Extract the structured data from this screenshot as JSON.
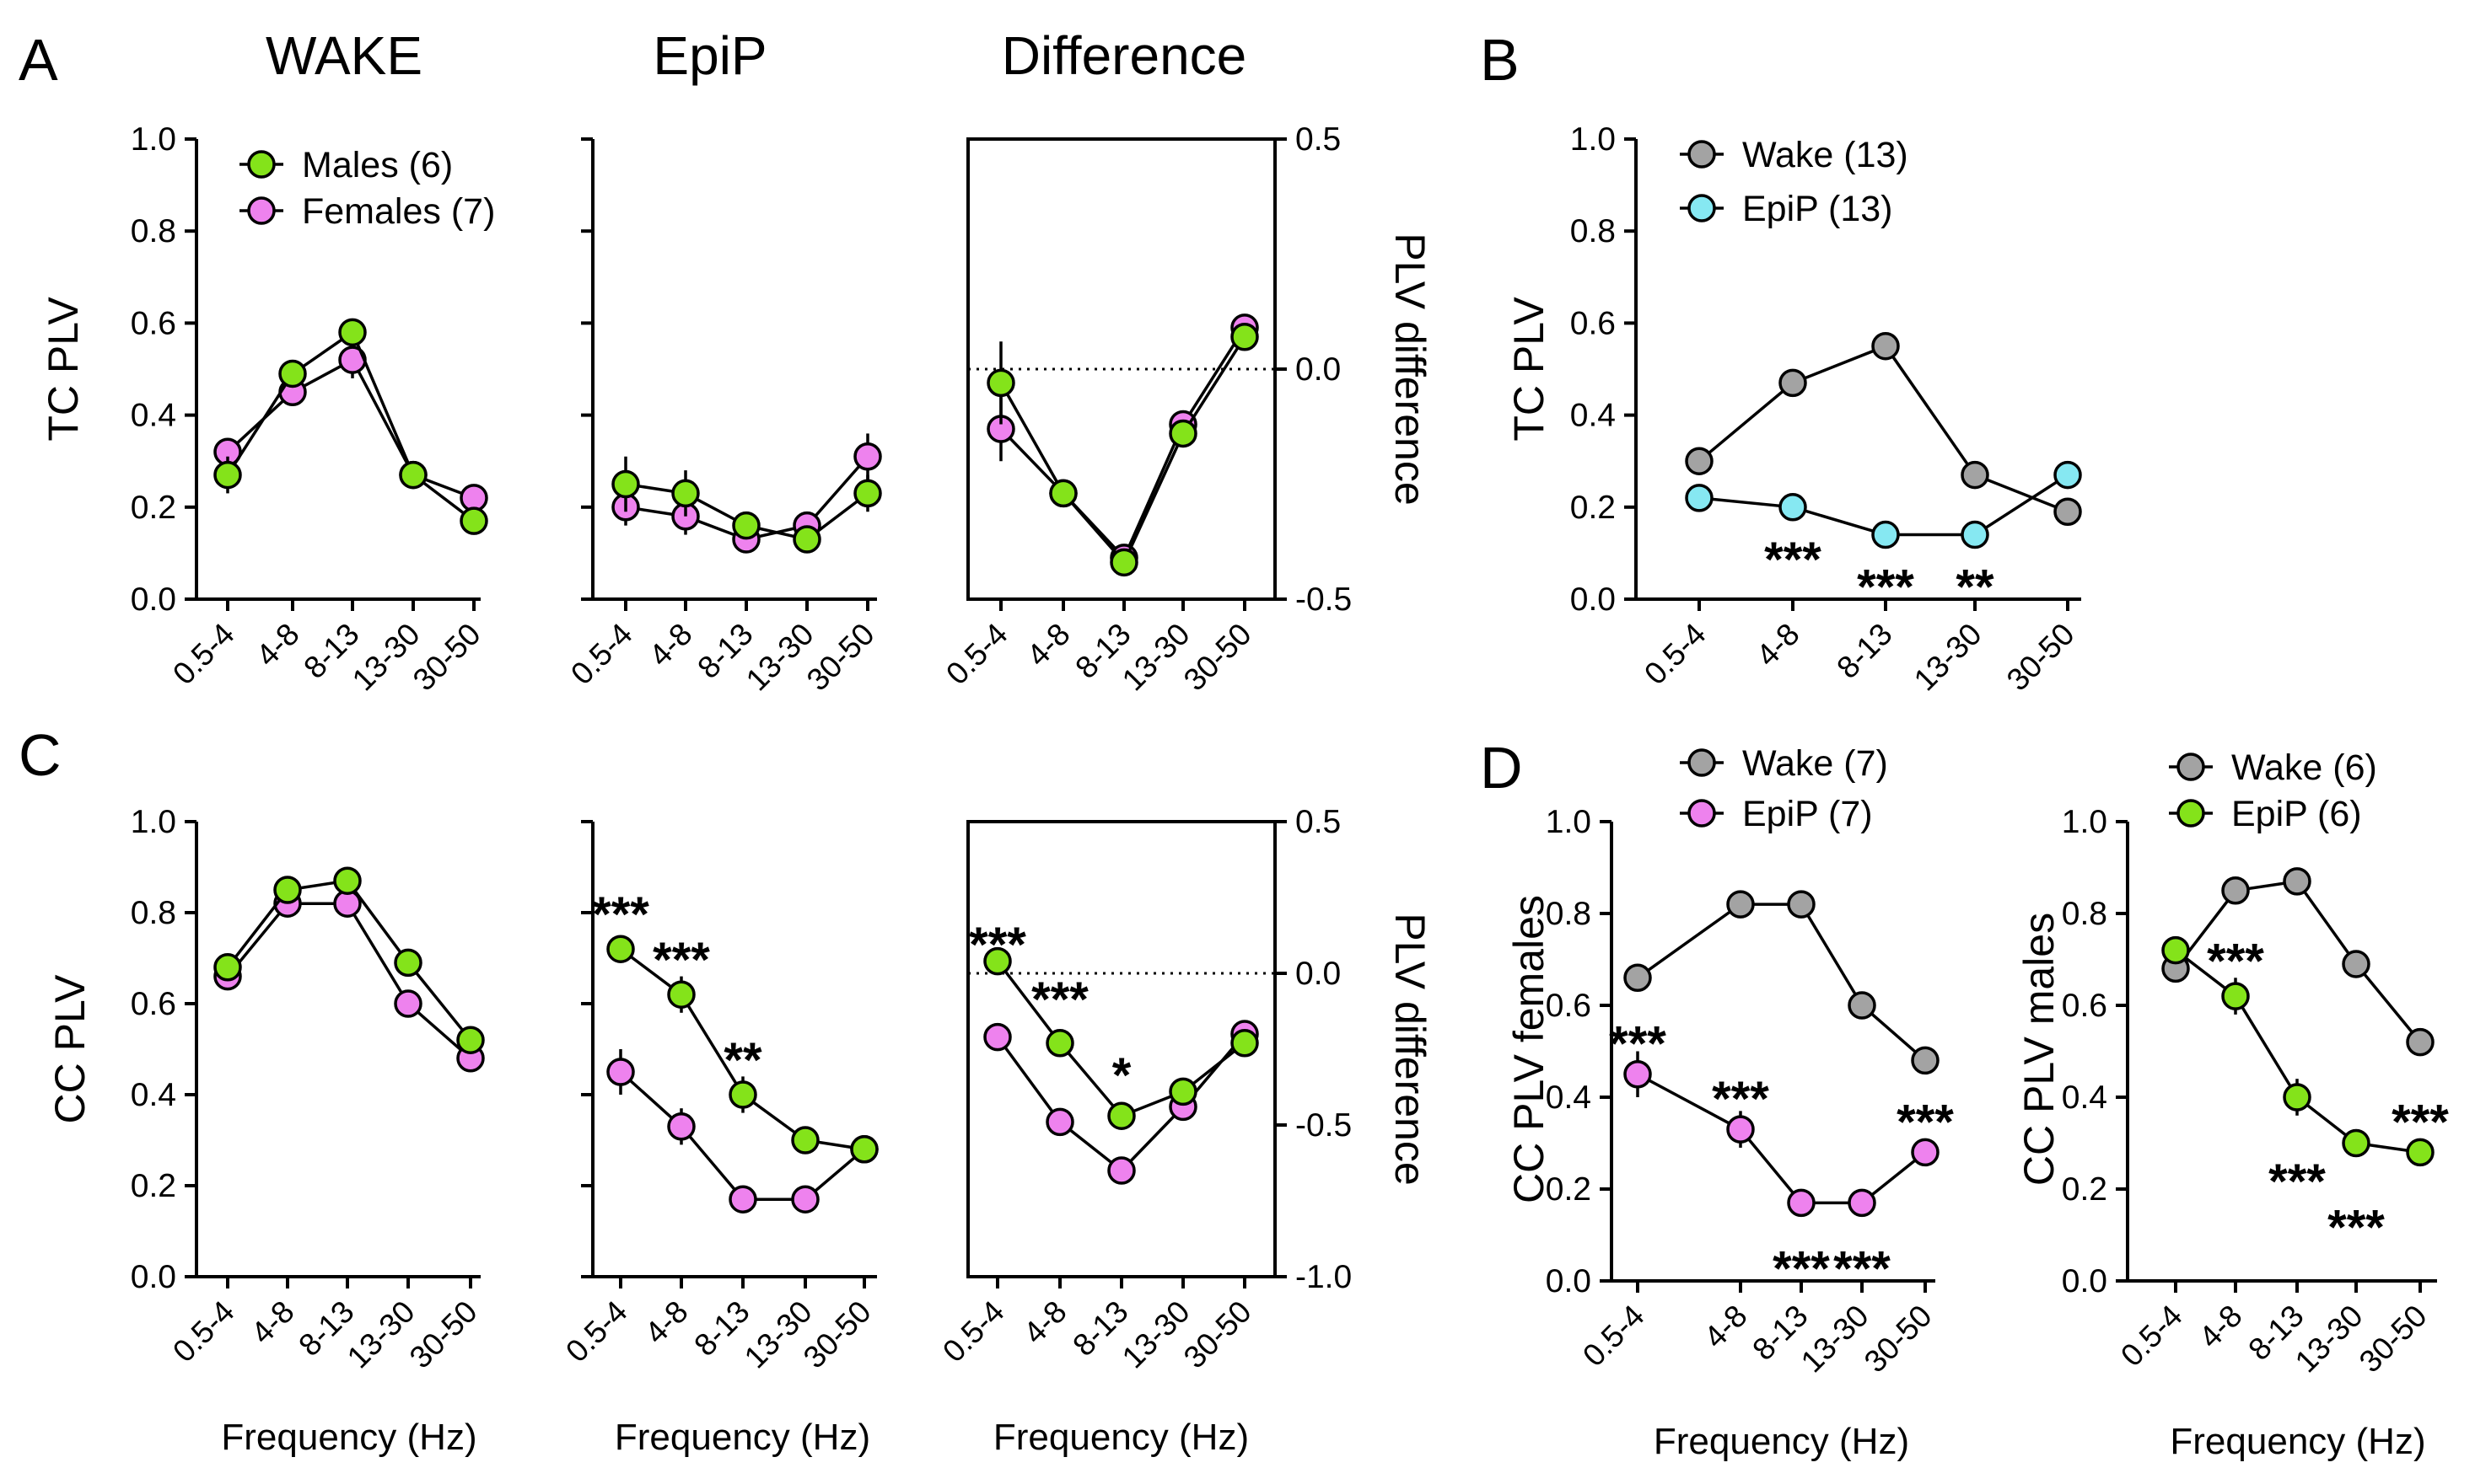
{
  "figure": {
    "panel_letters": [
      "A",
      "B",
      "C",
      "D"
    ]
  },
  "colors": {
    "males": "#84e31a",
    "females": "#ee82ee",
    "wake": "#a3a3a3",
    "epip_cyan": "#86e8f2",
    "epip_green": "#84e31a",
    "epip_magenta": "#ee82ee"
  },
  "chart_data": [
    {
      "id": "A-wake",
      "panel": "A",
      "type": "line",
      "title": "WAKE",
      "ylabel": "TC PLV",
      "xlabel": "",
      "ylim": [
        0,
        1
      ],
      "yticks": [
        "0.0",
        "0.2",
        "0.4",
        "0.6",
        "0.8",
        "1.0"
      ],
      "categories": [
        "0.5-4",
        "4-8",
        "8-13",
        "13-30",
        "30-50"
      ],
      "legend": [
        {
          "label": "Males (6)",
          "color": "males"
        },
        {
          "label": "Females (7)",
          "color": "females"
        }
      ],
      "series": [
        {
          "name": "Females (7)",
          "color": "females",
          "values": [
            0.32,
            0.45,
            0.52,
            0.27,
            0.22
          ],
          "err": [
            0.03,
            0.03,
            0.04,
            0.02,
            0.03
          ]
        },
        {
          "name": "Males (6)",
          "color": "males",
          "values": [
            0.27,
            0.49,
            0.58,
            0.27,
            0.17
          ],
          "err": [
            0.04,
            0.02,
            0.02,
            0.02,
            0.02
          ]
        }
      ],
      "annotations": []
    },
    {
      "id": "A-epip",
      "panel": "A",
      "type": "line",
      "title": "EpiP",
      "ylabel": "",
      "xlabel": "",
      "ylim": [
        0,
        1
      ],
      "yticks": [
        "",
        "",
        "",
        "",
        "",
        ""
      ],
      "categories": [
        "0.5-4",
        "4-8",
        "8-13",
        "13-30",
        "30-50"
      ],
      "series": [
        {
          "name": "Females",
          "color": "females",
          "values": [
            0.2,
            0.18,
            0.13,
            0.16,
            0.31
          ],
          "err": [
            0.04,
            0.04,
            0.02,
            0.03,
            0.05
          ]
        },
        {
          "name": "Males",
          "color": "males",
          "values": [
            0.25,
            0.23,
            0.16,
            0.13,
            0.23
          ],
          "err": [
            0.06,
            0.05,
            0.02,
            0.02,
            0.04
          ]
        }
      ],
      "annotations": []
    },
    {
      "id": "A-diff",
      "panel": "A",
      "type": "line",
      "title": "Difference",
      "ylabel": "PLV difference",
      "xlabel": "",
      "ylim": [
        -0.5,
        0.5
      ],
      "yticks": [
        "-0.5",
        "0.0",
        "0.5"
      ],
      "categories": [
        "0.5-4",
        "4-8",
        "8-13",
        "13-30",
        "30-50"
      ],
      "series": [
        {
          "name": "Females",
          "color": "females",
          "values": [
            -0.13,
            -0.27,
            -0.41,
            -0.12,
            0.09
          ],
          "err": [
            0.07,
            0.03,
            0.02,
            0.02,
            0.02
          ]
        },
        {
          "name": "Males",
          "color": "males",
          "values": [
            -0.03,
            -0.27,
            -0.42,
            -0.14,
            0.07
          ],
          "err": [
            0.09,
            0.03,
            0.02,
            0.02,
            0.02
          ]
        }
      ],
      "annotations": []
    },
    {
      "id": "B",
      "panel": "B",
      "type": "line",
      "title": "",
      "ylabel": "TC PLV",
      "xlabel": "",
      "ylim": [
        0,
        1
      ],
      "yticks": [
        "0.0",
        "0.2",
        "0.4",
        "0.6",
        "0.8",
        "1.0"
      ],
      "categories": [
        "0.5-4",
        "4-8",
        "8-13",
        "13-30",
        "30-50"
      ],
      "legend": [
        {
          "label": "Wake (13)",
          "color": "wake"
        },
        {
          "label": "EpiP (13)",
          "color": "epip_cyan"
        }
      ],
      "series": [
        {
          "name": "Wake (13)",
          "color": "wake",
          "values": [
            0.3,
            0.47,
            0.55,
            0.27,
            0.19
          ],
          "err": [
            0.02,
            0.02,
            0.02,
            0.01,
            0.02
          ]
        },
        {
          "name": "EpiP (13)",
          "color": "epip_cyan",
          "values": [
            0.22,
            0.2,
            0.14,
            0.14,
            0.27
          ],
          "err": [
            0.03,
            0.02,
            0.01,
            0.01,
            0.03
          ]
        }
      ],
      "annotations": [
        {
          "text": "***",
          "x": 1,
          "y": 0.09
        },
        {
          "text": "***",
          "x": 2,
          "y": 0.03
        },
        {
          "text": "**",
          "x": 3,
          "y": 0.03
        }
      ]
    },
    {
      "id": "C-wake",
      "panel": "C",
      "type": "line",
      "title": "",
      "ylabel": "CC PLV",
      "xlabel": "Frequency (Hz)",
      "ylim": [
        0,
        1
      ],
      "yticks": [
        "0.0",
        "0.2",
        "0.4",
        "0.6",
        "0.8",
        "1.0"
      ],
      "categories": [
        "0.5-4",
        "4-8",
        "8-13",
        "13-30",
        "30-50"
      ],
      "series": [
        {
          "name": "Females",
          "color": "females",
          "values": [
            0.66,
            0.82,
            0.82,
            0.6,
            0.48
          ],
          "err": [
            0.02,
            0.02,
            0.02,
            0.02,
            0.02
          ]
        },
        {
          "name": "Males",
          "color": "males",
          "values": [
            0.68,
            0.85,
            0.87,
            0.69,
            0.52
          ],
          "err": [
            0.02,
            0.02,
            0.02,
            0.02,
            0.02
          ]
        }
      ],
      "annotations": []
    },
    {
      "id": "C-epip",
      "panel": "C",
      "type": "line",
      "title": "",
      "ylabel": "",
      "xlabel": "Frequency (Hz)",
      "ylim": [
        0,
        1
      ],
      "yticks": [
        "",
        "",
        "",
        "",
        "",
        ""
      ],
      "categories": [
        "0.5-4",
        "4-8",
        "8-13",
        "13-30",
        "30-50"
      ],
      "series": [
        {
          "name": "Females",
          "color": "females",
          "values": [
            0.45,
            0.33,
            0.17,
            0.17,
            0.28
          ],
          "err": [
            0.05,
            0.04,
            0.03,
            0.02,
            0.03
          ]
        },
        {
          "name": "Males",
          "color": "males",
          "values": [
            0.72,
            0.62,
            0.4,
            0.3,
            0.28
          ],
          "err": [
            0.03,
            0.04,
            0.04,
            0.02,
            0.02
          ]
        }
      ],
      "annotations": [
        {
          "text": "***",
          "x": 0,
          "y": 0.8
        },
        {
          "text": "***",
          "x": 1,
          "y": 0.7
        },
        {
          "text": "**",
          "x": 2,
          "y": 0.48
        }
      ]
    },
    {
      "id": "C-diff",
      "panel": "C",
      "type": "line",
      "title": "",
      "ylabel": "PLV difference",
      "xlabel": "Frequency (Hz)",
      "ylim": [
        -1.0,
        0.5
      ],
      "yticks": [
        "-1.0",
        "-0.5",
        "0.0",
        "0.5"
      ],
      "categories": [
        "0.5-4",
        "4-8",
        "8-13",
        "13-30",
        "30-50"
      ],
      "series": [
        {
          "name": "Females",
          "color": "females",
          "values": [
            -0.21,
            -0.49,
            -0.65,
            -0.44,
            -0.2
          ],
          "err": [
            0.03,
            0.02,
            0.02,
            0.02,
            0.02
          ]
        },
        {
          "name": "Males",
          "color": "males",
          "values": [
            0.04,
            -0.23,
            -0.47,
            -0.39,
            -0.23
          ],
          "err": [
            0.02,
            0.02,
            0.02,
            0.02,
            0.02
          ]
        }
      ],
      "annotations": [
        {
          "text": "***",
          "x": 0,
          "y": 0.1
        },
        {
          "text": "***",
          "x": 1,
          "y": -0.08
        },
        {
          "text": "*",
          "x": 2,
          "y": -0.33
        }
      ]
    },
    {
      "id": "D-females",
      "panel": "D",
      "type": "line",
      "title": "",
      "ylabel": "CC PLV females",
      "xlabel": "Frequency (Hz)",
      "ylim": [
        0,
        1
      ],
      "yticks": [
        "0.0",
        "0.2",
        "0.4",
        "0.6",
        "0.8",
        "1.0"
      ],
      "categories": [
        "0.5-4",
        "4-8",
        "8-13",
        "13-30",
        "30-50"
      ],
      "legend": [
        {
          "label": "Wake (7)",
          "color": "wake"
        },
        {
          "label": "EpiP (7)",
          "color": "epip_magenta"
        }
      ],
      "series": [
        {
          "name": "Wake (7)",
          "color": "wake",
          "values": [
            0.66,
            0.82,
            0.82,
            0.6,
            0.48
          ],
          "err": [
            0.02,
            0.02,
            0.02,
            0.02,
            0.02
          ]
        },
        {
          "name": "EpiP (7)",
          "color": "epip_magenta",
          "values": [
            0.45,
            0.33,
            0.17,
            0.17,
            0.28
          ],
          "err": [
            0.05,
            0.04,
            0.03,
            0.02,
            0.03
          ]
        }
      ],
      "annotations": [
        {
          "text": "***",
          "x": 0,
          "y": 0.52
        },
        {
          "text": "***",
          "x": 1,
          "y": 0.4
        },
        {
          "text": "***",
          "x": 2,
          "y": 0.03
        },
        {
          "text": "***",
          "x": 3,
          "y": 0.03
        },
        {
          "text": "***",
          "x": 4,
          "y": 0.35
        }
      ]
    },
    {
      "id": "D-males",
      "panel": "D",
      "type": "line",
      "title": "",
      "ylabel": "CC PLV males",
      "xlabel": "Frequency (Hz)",
      "ylim": [
        0,
        1
      ],
      "yticks": [
        "0.0",
        "0.2",
        "0.4",
        "0.6",
        "0.8",
        "1.0"
      ],
      "categories": [
        "0.5-4",
        "4-8",
        "8-13",
        "13-30",
        "30-50"
      ],
      "legend": [
        {
          "label": "Wake (6)",
          "color": "wake"
        },
        {
          "label": "EpiP (6)",
          "color": "epip_green"
        }
      ],
      "series": [
        {
          "name": "Wake (6)",
          "color": "wake",
          "values": [
            0.68,
            0.85,
            0.87,
            0.69,
            0.52
          ],
          "err": [
            0.02,
            0.02,
            0.02,
            0.02,
            0.02
          ]
        },
        {
          "name": "EpiP (6)",
          "color": "epip_green",
          "values": [
            0.72,
            0.62,
            0.4,
            0.3,
            0.28
          ],
          "err": [
            0.03,
            0.04,
            0.04,
            0.02,
            0.02
          ]
        }
      ],
      "annotations": [
        {
          "text": "***",
          "x": 1,
          "y": 0.7
        },
        {
          "text": "***",
          "x": 2,
          "y": 0.22
        },
        {
          "text": "***",
          "x": 3,
          "y": 0.12
        },
        {
          "text": "***",
          "x": 4,
          "y": 0.35
        }
      ]
    }
  ]
}
